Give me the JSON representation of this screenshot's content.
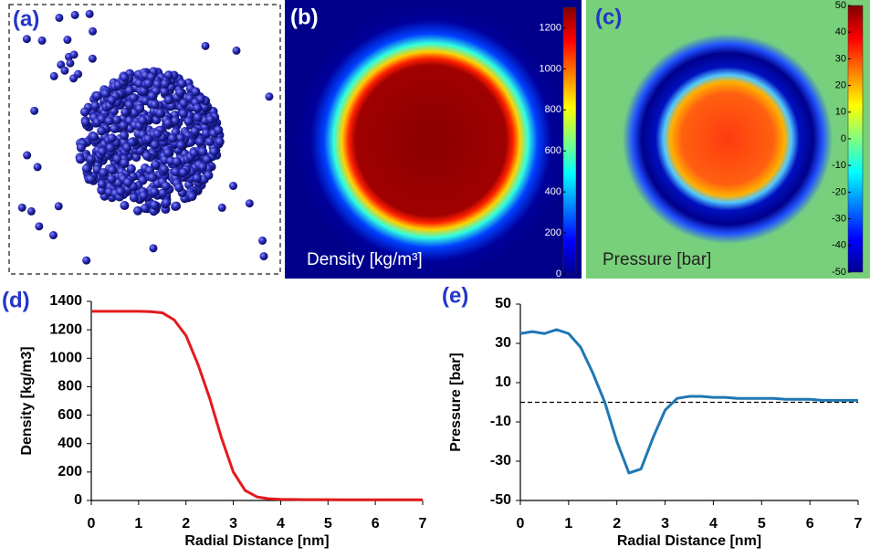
{
  "chart_data": [
    {
      "type": "particles",
      "label": "(a)"
    },
    {
      "type": "heatmap",
      "label": "(b)",
      "annotation": "Density [kg/m³]",
      "colorbar_lim": [
        0,
        1300
      ],
      "colorbar_ticks": [
        0,
        200,
        400,
        600,
        800,
        1000,
        1200
      ]
    },
    {
      "type": "heatmap",
      "label": "(c)",
      "annotation": "Pressure [bar]",
      "colorbar_lim": [
        -50,
        50
      ],
      "colorbar_ticks": [
        -50,
        -40,
        -30,
        -20,
        -10,
        0,
        10,
        20,
        30,
        40,
        50
      ]
    },
    {
      "type": "line",
      "label": "(d)",
      "xlabel": "Radial Distance [nm]",
      "ylabel": "Density [kg/m3]",
      "color": "#e41a1c",
      "x": [
        0,
        0.25,
        0.5,
        0.75,
        1,
        1.25,
        1.5,
        1.75,
        2,
        2.25,
        2.5,
        2.75,
        3,
        3.25,
        3.5,
        3.75,
        4,
        4.25,
        4.5,
        4.75,
        5,
        5.25,
        5.5,
        5.75,
        6,
        6.25,
        6.5,
        6.75,
        7
      ],
      "values": [
        1330,
        1330,
        1330,
        1330,
        1330,
        1328,
        1320,
        1270,
        1160,
        960,
        720,
        440,
        200,
        70,
        25,
        12,
        8,
        7,
        6,
        6,
        6,
        5,
        5,
        5,
        5,
        5,
        5,
        5,
        5
      ],
      "xlim": [
        0,
        7
      ],
      "xticks": [
        0,
        1,
        2,
        3,
        4,
        5,
        6,
        7
      ],
      "ylim": [
        0,
        1400
      ],
      "yticks": [
        0,
        200,
        400,
        600,
        800,
        1000,
        1200,
        1400
      ]
    },
    {
      "type": "line",
      "label": "(e)",
      "xlabel": "Radial Distance [nm]",
      "ylabel": "Pressure [bar]",
      "color": "#1f77b4",
      "x": [
        0,
        0.25,
        0.5,
        0.75,
        1,
        1.25,
        1.5,
        1.75,
        2,
        2.25,
        2.5,
        2.75,
        3,
        3.25,
        3.5,
        3.75,
        4,
        4.25,
        4.5,
        4.75,
        5,
        5.25,
        5.5,
        5.75,
        6,
        6.25,
        6.5,
        6.75,
        7
      ],
      "values": [
        35,
        36,
        35,
        37,
        35,
        28,
        15,
        0,
        -20,
        -36,
        -34,
        -18,
        -4,
        2,
        3,
        3,
        2.5,
        2.5,
        2,
        2,
        2,
        2,
        1.5,
        1.5,
        1.5,
        1,
        1,
        1,
        1
      ],
      "reference_line": 0,
      "xlim": [
        0,
        7
      ],
      "xticks": [
        0,
        1,
        2,
        3,
        4,
        5,
        6,
        7
      ],
      "ylim": [
        -50,
        50
      ],
      "yticks": [
        -50,
        -30,
        -10,
        10,
        30,
        50
      ]
    }
  ]
}
